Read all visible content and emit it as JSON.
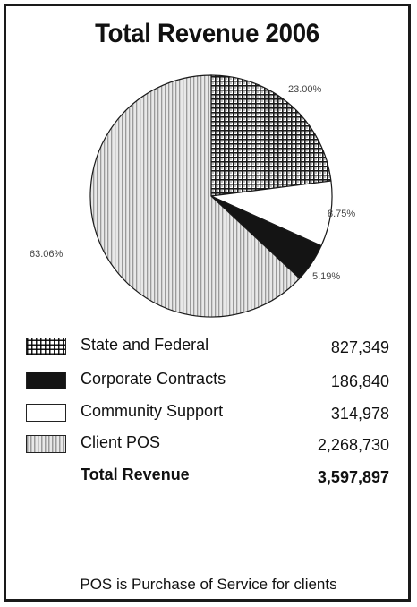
{
  "chart_data": {
    "type": "pie",
    "title": "Total Revenue 2006",
    "slices": [
      {
        "label": "State and Federal",
        "value": 827349,
        "value_label": "827,349",
        "percent_label": "23.00%",
        "pattern": "grid"
      },
      {
        "label": "Community Support",
        "value": 314978,
        "value_label": "314,978",
        "percent_label": "8.75%",
        "pattern": "white"
      },
      {
        "label": "Corporate Contracts",
        "value": 186840,
        "value_label": "186,840",
        "percent_label": "5.19%",
        "pattern": "black"
      },
      {
        "label": "Client POS",
        "value": 2268730,
        "value_label": "2,268,730",
        "percent_label": "63.06%",
        "pattern": "vstripes"
      }
    ],
    "legend": [
      {
        "label": "State and Federal",
        "value": "827,349",
        "pattern": "grid"
      },
      {
        "label": "Corporate Contracts",
        "value": "186,840",
        "pattern": "black"
      },
      {
        "label": "Community Support",
        "value": "314,978",
        "pattern": "white"
      },
      {
        "label": "Client POS",
        "value": "2,268,730",
        "pattern": "vstripes"
      }
    ],
    "total": {
      "label": "Total Revenue",
      "value": "3,597,897"
    },
    "footnote": "POS is Purchase of Service for clients"
  }
}
